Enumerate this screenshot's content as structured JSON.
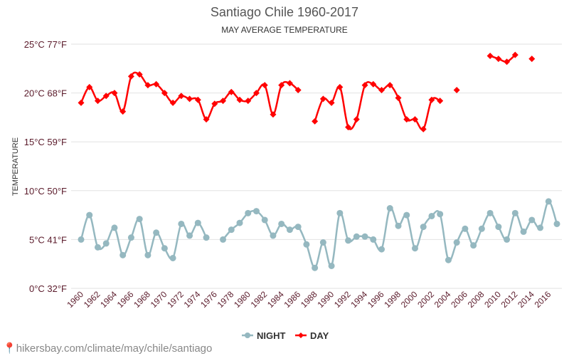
{
  "chart_data": {
    "type": "line",
    "title": "Santiago Chile 1960-2017",
    "subtitle": "MAY AVERAGE TEMPERATURE",
    "ylabel": "TEMPERATURE",
    "ylim": [
      0,
      25
    ],
    "yticks": [
      {
        "value": 0,
        "label": "0°C 32°F"
      },
      {
        "value": 5,
        "label": "5°C 41°F"
      },
      {
        "value": 10,
        "label": "10°C 50°F"
      },
      {
        "value": 15,
        "label": "15°C 59°F"
      },
      {
        "value": 20,
        "label": "20°C 68°F"
      },
      {
        "value": 25,
        "label": "25°C 77°F"
      }
    ],
    "xlim": [
      1960,
      2017
    ],
    "xticks": [
      1960,
      1962,
      1964,
      1966,
      1968,
      1970,
      1972,
      1974,
      1976,
      1978,
      1980,
      1982,
      1984,
      1986,
      1988,
      1990,
      1992,
      1994,
      1996,
      1998,
      2000,
      2002,
      2004,
      2006,
      2008,
      2010,
      2012,
      2014,
      2016
    ],
    "x": [
      1960,
      1961,
      1962,
      1963,
      1964,
      1965,
      1966,
      1967,
      1968,
      1969,
      1970,
      1971,
      1972,
      1973,
      1974,
      1975,
      1976,
      1977,
      1978,
      1979,
      1980,
      1981,
      1982,
      1983,
      1984,
      1985,
      1986,
      1987,
      1988,
      1989,
      1990,
      1991,
      1992,
      1993,
      1994,
      1995,
      1996,
      1997,
      1998,
      1999,
      2000,
      2001,
      2002,
      2003,
      2004,
      2005,
      2006,
      2007,
      2008,
      2009,
      2010,
      2011,
      2012,
      2013,
      2014,
      2015,
      2016,
      2017
    ],
    "series": [
      {
        "name": "NIGHT",
        "color": "#95b8c0",
        "marker": "circle",
        "values": [
          5.0,
          7.5,
          4.2,
          4.6,
          6.2,
          3.4,
          5.2,
          7.1,
          3.4,
          5.7,
          4.1,
          3.1,
          6.6,
          5.4,
          6.7,
          5.2,
          null,
          5.0,
          6.0,
          6.7,
          7.7,
          7.9,
          7.0,
          5.4,
          6.6,
          6.0,
          6.3,
          4.5,
          2.1,
          4.7,
          2.3,
          7.7,
          4.9,
          5.3,
          5.3,
          5.0,
          4.0,
          8.2,
          6.4,
          7.5,
          4.1,
          6.3,
          7.4,
          7.6,
          2.9,
          4.7,
          6.1,
          4.4,
          6.1,
          7.7,
          6.3,
          5.0,
          7.7,
          5.8,
          7.0,
          6.2,
          8.9,
          6.6
        ]
      },
      {
        "name": "DAY",
        "color": "#ff0000",
        "marker": "diamond",
        "values": [
          19.0,
          20.6,
          19.2,
          19.7,
          20.0,
          18.1,
          21.7,
          21.9,
          20.8,
          20.9,
          20.0,
          19.0,
          19.7,
          19.4,
          19.3,
          17.3,
          18.9,
          19.2,
          20.1,
          19.3,
          19.2,
          20.0,
          20.8,
          17.8,
          20.8,
          21.0,
          20.3,
          null,
          17.1,
          19.4,
          19.0,
          20.6,
          16.5,
          17.3,
          20.8,
          20.9,
          20.3,
          20.8,
          19.5,
          17.3,
          17.3,
          16.3,
          19.3,
          19.2,
          null,
          20.3,
          null,
          null,
          null,
          23.8,
          23.5,
          23.2,
          23.9,
          null,
          23.5,
          null,
          null,
          null
        ]
      }
    ],
    "legend": "bottom",
    "grid": true
  },
  "footer": {
    "url": "hikersbay.com/climate/may/chile/santiago"
  }
}
